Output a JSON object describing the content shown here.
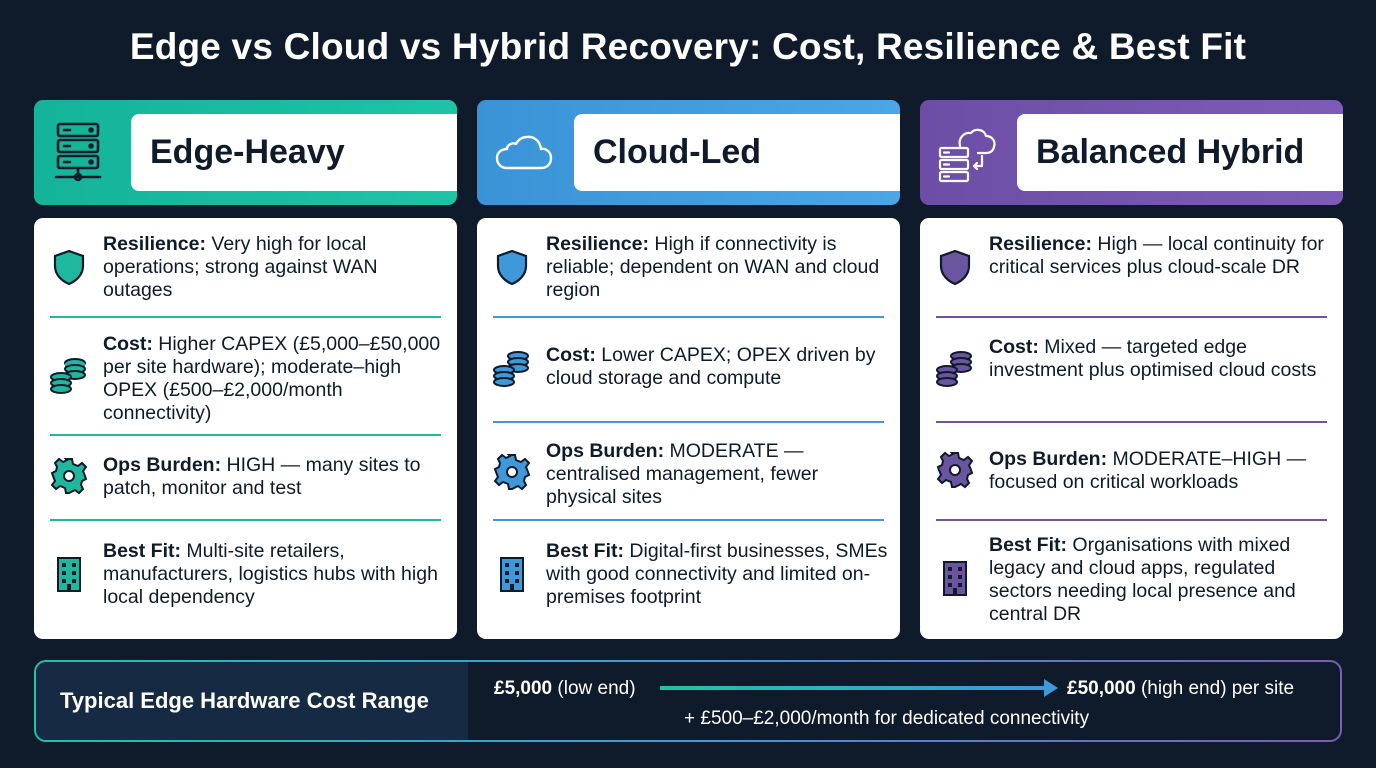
{
  "title": "Edge vs Cloud vs Hybrid Recovery: Cost, Resilience & Best Fit",
  "columns": [
    {
      "name": "Edge-Heavy",
      "header_icon": "server-rack-icon",
      "accent": "#1fc3a6",
      "rows": [
        {
          "icon": "shield-icon",
          "label": "Resilience:",
          "text": "Very high for local operations; strong against WAN outages"
        },
        {
          "icon": "coins-icon",
          "label": "Cost:",
          "text": "Higher CAPEX (£5,000–£50,000 per site hardware); moderate–high OPEX (£500–£2,000/month connectivity)"
        },
        {
          "icon": "gear-icon",
          "label": "Ops Burden:",
          "text": "HIGH — many sites to patch, monitor and test"
        },
        {
          "icon": "building-icon",
          "label": "Best Fit:",
          "text": "Multi-site retailers, manufacturers, logistics hubs with high local dependency"
        }
      ]
    },
    {
      "name": "Cloud-Led",
      "header_icon": "cloud-icon",
      "accent": "#3f98d8",
      "rows": [
        {
          "icon": "shield-icon",
          "label": "Resilience:",
          "text": "High if connectivity is reliable; dependent on WAN and cloud region"
        },
        {
          "icon": "coins-icon",
          "label": "Cost:",
          "text": "Lower CAPEX; OPEX driven by cloud storage and compute"
        },
        {
          "icon": "gear-icon",
          "label": "Ops Burden:",
          "text": "MODERATE — centralised management, fewer physical sites"
        },
        {
          "icon": "building-icon",
          "label": "Best Fit:",
          "text": "Digital-first businesses, SMEs with good connectivity and limited on-premises footprint"
        }
      ]
    },
    {
      "name": "Balanced Hybrid",
      "header_icon": "hybrid-server-cloud-icon",
      "accent": "#6b55a0",
      "rows": [
        {
          "icon": "shield-icon",
          "label": "Resilience:",
          "text": "High — local continuity for critical services plus cloud-scale DR"
        },
        {
          "icon": "coins-icon",
          "label": "Cost:",
          "text": "Mixed — targeted edge investment plus optimised cloud costs"
        },
        {
          "icon": "gear-icon",
          "label": "Ops Burden:",
          "text": "MODERATE–HIGH — focused on critical workloads"
        },
        {
          "icon": "building-icon",
          "label": "Best Fit:",
          "text": "Organisations with mixed legacy and cloud apps, regulated sectors needing local presence and central DR"
        }
      ]
    }
  ],
  "cost_range": {
    "label": "Typical Edge Hardware Cost Range",
    "low_value": "£5,000",
    "low_suffix": " (low end)",
    "high_value": "£50,000",
    "high_suffix": " (high end) per site",
    "note": "+ £500–£2,000/month for dedicated connectivity"
  }
}
